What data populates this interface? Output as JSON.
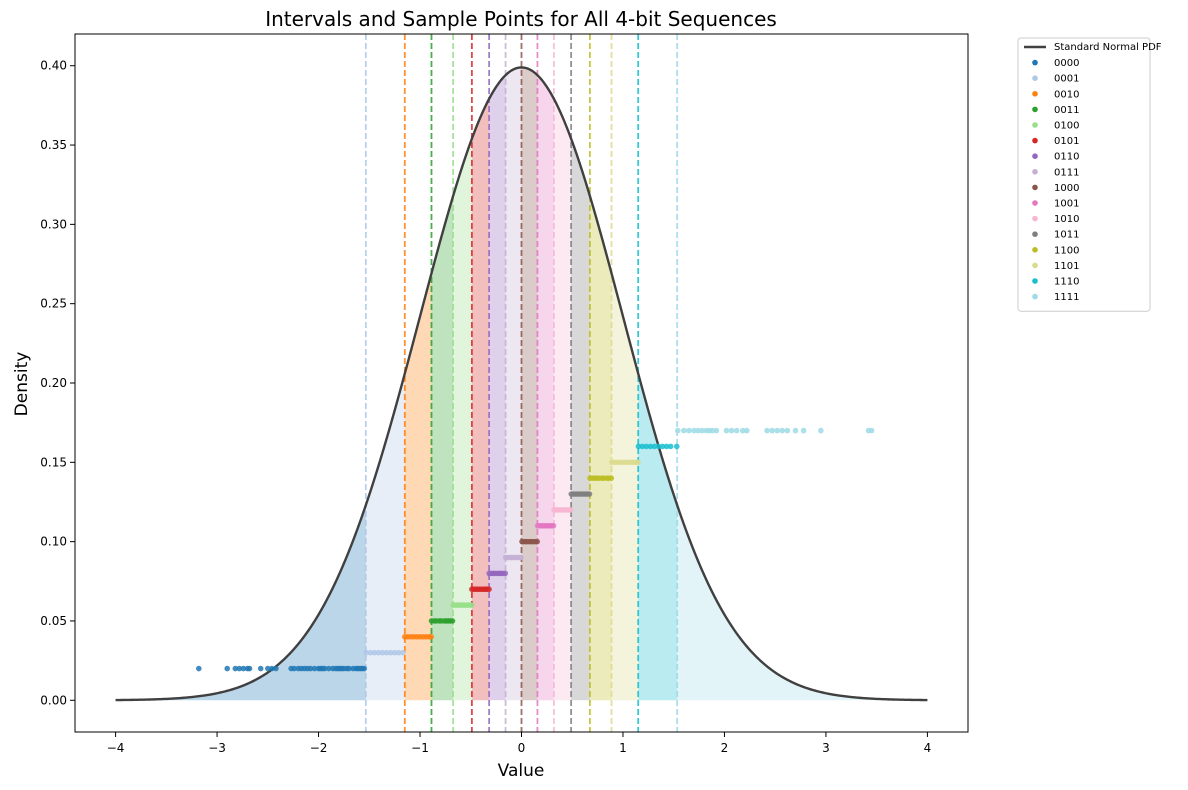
{
  "chart_data": {
    "type": "scatter",
    "title": "Intervals and Sample Points for All 4-bit Sequences",
    "xlabel": "Value",
    "ylabel": "Density",
    "xlim": [
      -4.4,
      4.4
    ],
    "ylim": [
      -0.02,
      0.42
    ],
    "x_ticks": [
      -4,
      -3,
      -2,
      -1,
      0,
      1,
      2,
      3,
      4
    ],
    "x_tick_labels": [
      "−4",
      "−3",
      "−2",
      "−1",
      "0",
      "1",
      "2",
      "3",
      "4"
    ],
    "y_ticks": [
      0.0,
      0.05,
      0.1,
      0.15,
      0.2,
      0.25,
      0.3,
      0.35,
      0.4
    ],
    "y_tick_labels": [
      "0.00",
      "0.05",
      "0.10",
      "0.15",
      "0.20",
      "0.25",
      "0.30",
      "0.35",
      "0.40"
    ],
    "grid": false,
    "legend_position": "outside-top-right",
    "pdf_curve": {
      "name": "Standard Normal PDF",
      "color": "#404040",
      "x_range": [
        -4,
        4
      ]
    },
    "boundaries": [
      -1.534,
      -1.15,
      -0.887,
      -0.674,
      -0.489,
      -0.319,
      -0.157,
      0.0,
      0.157,
      0.319,
      0.489,
      0.674,
      0.887,
      1.15,
      1.534
    ],
    "series": [
      {
        "name": "0000",
        "color": "#1f77b4",
        "y": 0.02,
        "x": [
          -3.18,
          -2.9,
          -2.82,
          -2.78,
          -2.74,
          -2.7,
          -2.68,
          -2.57,
          -2.5,
          -2.46,
          -2.42,
          -2.27,
          -2.24,
          -2.2,
          -2.17,
          -2.14,
          -2.11,
          -2.08,
          -2.04,
          -2.0,
          -1.98,
          -1.96,
          -1.94,
          -1.9,
          -1.86,
          -1.83,
          -1.81,
          -1.79,
          -1.77,
          -1.75,
          -1.72,
          -1.7,
          -1.66,
          -1.63,
          -1.61,
          -1.59,
          -1.57,
          -1.55
        ]
      },
      {
        "name": "0001",
        "color": "#aec7e8",
        "y": 0.03,
        "x": [
          -1.53,
          -1.49,
          -1.45,
          -1.41,
          -1.37,
          -1.33,
          -1.29,
          -1.25,
          -1.21,
          -1.17
        ]
      },
      {
        "name": "0010",
        "color": "#ff7f0e",
        "y": 0.04,
        "x": [
          -1.15,
          -1.12,
          -1.09,
          -1.06,
          -1.03,
          -1.0,
          -0.97,
          -0.94,
          -0.91,
          -0.89
        ]
      },
      {
        "name": "0011",
        "color": "#2ca02c",
        "y": 0.05,
        "x": [
          -0.887,
          -0.86,
          -0.84,
          -0.81,
          -0.79,
          -0.76,
          -0.74,
          -0.72,
          -0.7,
          -0.68
        ]
      },
      {
        "name": "0100",
        "color": "#98df8a",
        "y": 0.06,
        "x": [
          -0.674,
          -0.65,
          -0.63,
          -0.61,
          -0.59,
          -0.57,
          -0.55,
          -0.53,
          -0.51,
          -0.49
        ]
      },
      {
        "name": "0101",
        "color": "#d62728",
        "y": 0.07,
        "x": [
          -0.489,
          -0.47,
          -0.45,
          -0.43,
          -0.41,
          -0.39,
          -0.37,
          -0.35,
          -0.34,
          -0.32
        ]
      },
      {
        "name": "0110",
        "color": "#9467bd",
        "y": 0.08,
        "x": [
          -0.319,
          -0.3,
          -0.28,
          -0.27,
          -0.25,
          -0.23,
          -0.21,
          -0.2,
          -0.18,
          -0.16
        ]
      },
      {
        "name": "0111",
        "color": "#c5b0d5",
        "y": 0.09,
        "x": [
          -0.157,
          -0.14,
          -0.12,
          -0.1,
          -0.09,
          -0.07,
          -0.05,
          -0.04,
          -0.02,
          -0.005
        ]
      },
      {
        "name": "1000",
        "color": "#8c564b",
        "y": 0.1,
        "x": [
          0.005,
          0.02,
          0.04,
          0.05,
          0.07,
          0.09,
          0.1,
          0.12,
          0.14,
          0.155
        ]
      },
      {
        "name": "1001",
        "color": "#e377c2",
        "y": 0.11,
        "x": [
          0.16,
          0.18,
          0.2,
          0.21,
          0.23,
          0.25,
          0.27,
          0.28,
          0.3,
          0.315
        ]
      },
      {
        "name": "1010",
        "color": "#f7b6d2",
        "y": 0.12,
        "x": [
          0.32,
          0.34,
          0.35,
          0.37,
          0.39,
          0.41,
          0.43,
          0.45,
          0.47,
          0.485
        ]
      },
      {
        "name": "1011",
        "color": "#7f7f7f",
        "y": 0.13,
        "x": [
          0.49,
          0.51,
          0.53,
          0.55,
          0.57,
          0.59,
          0.61,
          0.63,
          0.65,
          0.67
        ]
      },
      {
        "name": "1100",
        "color": "#bcbd22",
        "y": 0.14,
        "x": [
          0.675,
          0.7,
          0.72,
          0.74,
          0.76,
          0.79,
          0.81,
          0.84,
          0.86,
          0.885
        ]
      },
      {
        "name": "1101",
        "color": "#dbdb8d",
        "y": 0.15,
        "x": [
          0.89,
          0.92,
          0.95,
          0.98,
          1.01,
          1.04,
          1.07,
          1.1,
          1.13,
          1.148
        ]
      },
      {
        "name": "1110",
        "color": "#17becf",
        "y": 0.16,
        "x": [
          1.152,
          1.19,
          1.23,
          1.27,
          1.31,
          1.35,
          1.39,
          1.43,
          1.47,
          1.53
        ]
      },
      {
        "name": "1111",
        "color": "#9edae5",
        "y": 0.17,
        "x": [
          1.54,
          1.6,
          1.65,
          1.7,
          1.74,
          1.78,
          1.82,
          1.85,
          1.88,
          1.92,
          2.02,
          2.07,
          2.12,
          2.18,
          2.22,
          2.42,
          2.47,
          2.52,
          2.57,
          2.62,
          2.7,
          2.78,
          2.95,
          3.42,
          3.45
        ]
      }
    ]
  }
}
